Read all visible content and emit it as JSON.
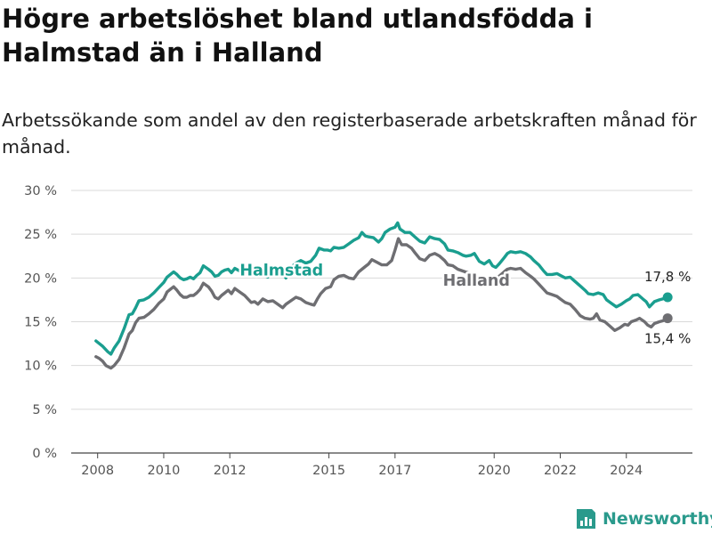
{
  "title": "Högre arbetslöshet bland utlandsfödda i Halmstad än i Halland",
  "subtitle": "Arbetssökande som andel av den registerbaserade arbetskraften månad för månad.",
  "brand": "Newsworthy",
  "colors": {
    "halmstad": "#1a9e8f",
    "halland": "#6e6e72",
    "grid": "#d9d9d9",
    "axis": "#555555"
  },
  "chart_data": {
    "type": "line",
    "y_ticks": [
      "0 %",
      "5 %",
      "10 %",
      "15 %",
      "20 %",
      "25 %",
      "30 %"
    ],
    "y_tick_values": [
      0,
      5,
      10,
      15,
      20,
      25,
      30
    ],
    "ylim": [
      0,
      30
    ],
    "x_ticks": [
      "2008",
      "2010",
      "2012",
      "2015",
      "2017",
      "2020",
      "2022",
      "2024"
    ],
    "x_tick_values": [
      2008,
      2010,
      2012,
      2015,
      2017,
      2020,
      2022,
      2024
    ],
    "xlim": [
      2007.2,
      2026.0
    ],
    "grid": true,
    "series": [
      {
        "name": "Halmstad",
        "end_label": "17,8 %",
        "points": [
          [
            2007.95,
            12.8
          ],
          [
            2008.05,
            12.5
          ],
          [
            2008.15,
            12.2
          ],
          [
            2008.3,
            11.6
          ],
          [
            2008.4,
            11.3
          ],
          [
            2008.5,
            12.0
          ],
          [
            2008.65,
            12.8
          ],
          [
            2008.8,
            14.2
          ],
          [
            2008.95,
            15.8
          ],
          [
            2009.05,
            15.9
          ],
          [
            2009.15,
            16.6
          ],
          [
            2009.25,
            17.4
          ],
          [
            2009.4,
            17.5
          ],
          [
            2009.55,
            17.8
          ],
          [
            2009.7,
            18.3
          ],
          [
            2009.85,
            18.9
          ],
          [
            2010.0,
            19.5
          ],
          [
            2010.1,
            20.1
          ],
          [
            2010.2,
            20.4
          ],
          [
            2010.3,
            20.7
          ],
          [
            2010.4,
            20.4
          ],
          [
            2010.5,
            20.0
          ],
          [
            2010.6,
            19.8
          ],
          [
            2010.7,
            19.9
          ],
          [
            2010.8,
            20.1
          ],
          [
            2010.9,
            19.9
          ],
          [
            2011.0,
            20.3
          ],
          [
            2011.1,
            20.6
          ],
          [
            2011.2,
            21.4
          ],
          [
            2011.35,
            21.0
          ],
          [
            2011.45,
            20.7
          ],
          [
            2011.55,
            20.2
          ],
          [
            2011.65,
            20.3
          ],
          [
            2011.75,
            20.7
          ],
          [
            2011.85,
            20.9
          ],
          [
            2011.95,
            21.0
          ],
          [
            2012.05,
            20.6
          ],
          [
            2012.15,
            21.1
          ],
          [
            2012.3,
            20.8
          ],
          [
            2012.45,
            20.6
          ],
          [
            2012.55,
            20.5
          ],
          [
            2012.65,
            20.7
          ],
          [
            2012.75,
            20.5
          ],
          [
            2012.85,
            20.3
          ],
          [
            2013.0,
            20.4
          ],
          [
            2013.15,
            20.1
          ],
          [
            2013.3,
            20.6
          ],
          [
            2013.45,
            20.3
          ],
          [
            2013.6,
            20.5
          ],
          [
            2013.7,
            20.0
          ],
          [
            2013.85,
            21.2
          ],
          [
            2014.0,
            21.7
          ],
          [
            2014.15,
            22.0
          ],
          [
            2014.3,
            21.7
          ],
          [
            2014.45,
            21.9
          ],
          [
            2014.6,
            22.6
          ],
          [
            2014.7,
            23.4
          ],
          [
            2014.85,
            23.2
          ],
          [
            2014.95,
            23.2
          ],
          [
            2015.05,
            23.1
          ],
          [
            2015.15,
            23.5
          ],
          [
            2015.3,
            23.4
          ],
          [
            2015.45,
            23.5
          ],
          [
            2015.6,
            23.9
          ],
          [
            2015.75,
            24.3
          ],
          [
            2015.9,
            24.6
          ],
          [
            2016.0,
            25.2
          ],
          [
            2016.1,
            24.8
          ],
          [
            2016.2,
            24.7
          ],
          [
            2016.35,
            24.6
          ],
          [
            2016.5,
            24.1
          ],
          [
            2016.6,
            24.5
          ],
          [
            2016.7,
            25.2
          ],
          [
            2016.85,
            25.6
          ],
          [
            2017.0,
            25.8
          ],
          [
            2017.08,
            26.3
          ],
          [
            2017.15,
            25.6
          ],
          [
            2017.3,
            25.2
          ],
          [
            2017.45,
            25.2
          ],
          [
            2017.6,
            24.7
          ],
          [
            2017.75,
            24.2
          ],
          [
            2017.9,
            24.0
          ],
          [
            2018.05,
            24.7
          ],
          [
            2018.2,
            24.5
          ],
          [
            2018.35,
            24.4
          ],
          [
            2018.5,
            23.9
          ],
          [
            2018.6,
            23.2
          ],
          [
            2018.75,
            23.1
          ],
          [
            2018.9,
            22.9
          ],
          [
            2019.05,
            22.6
          ],
          [
            2019.15,
            22.5
          ],
          [
            2019.3,
            22.6
          ],
          [
            2019.4,
            22.8
          ],
          [
            2019.55,
            21.9
          ],
          [
            2019.7,
            21.6
          ],
          [
            2019.85,
            22.0
          ],
          [
            2019.95,
            21.4
          ],
          [
            2020.05,
            21.2
          ],
          [
            2020.15,
            21.6
          ],
          [
            2020.3,
            22.3
          ],
          [
            2020.4,
            22.8
          ],
          [
            2020.5,
            23.0
          ],
          [
            2020.65,
            22.9
          ],
          [
            2020.8,
            23.0
          ],
          [
            2020.95,
            22.8
          ],
          [
            2021.1,
            22.4
          ],
          [
            2021.2,
            22.0
          ],
          [
            2021.35,
            21.5
          ],
          [
            2021.5,
            20.8
          ],
          [
            2021.6,
            20.4
          ],
          [
            2021.75,
            20.4
          ],
          [
            2021.9,
            20.5
          ],
          [
            2022.0,
            20.3
          ],
          [
            2022.15,
            20.0
          ],
          [
            2022.3,
            20.1
          ],
          [
            2022.45,
            19.6
          ],
          [
            2022.6,
            19.1
          ],
          [
            2022.75,
            18.6
          ],
          [
            2022.85,
            18.2
          ],
          [
            2023.0,
            18.1
          ],
          [
            2023.15,
            18.3
          ],
          [
            2023.3,
            18.1
          ],
          [
            2023.4,
            17.5
          ],
          [
            2023.55,
            17.1
          ],
          [
            2023.7,
            16.7
          ],
          [
            2023.85,
            17.0
          ],
          [
            2024.0,
            17.4
          ],
          [
            2024.1,
            17.6
          ],
          [
            2024.2,
            18.0
          ],
          [
            2024.35,
            18.1
          ],
          [
            2024.5,
            17.6
          ],
          [
            2024.6,
            17.3
          ],
          [
            2024.7,
            16.7
          ],
          [
            2024.85,
            17.3
          ],
          [
            2025.0,
            17.5
          ],
          [
            2025.1,
            17.6
          ],
          [
            2025.25,
            17.8
          ]
        ]
      },
      {
        "name": "Halland",
        "end_label": "15,4 %",
        "points": [
          [
            2007.95,
            11.0
          ],
          [
            2008.05,
            10.8
          ],
          [
            2008.15,
            10.5
          ],
          [
            2008.25,
            10.0
          ],
          [
            2008.4,
            9.7
          ],
          [
            2008.5,
            10.0
          ],
          [
            2008.65,
            10.7
          ],
          [
            2008.8,
            12.0
          ],
          [
            2008.95,
            13.6
          ],
          [
            2009.05,
            14.0
          ],
          [
            2009.15,
            14.9
          ],
          [
            2009.25,
            15.4
          ],
          [
            2009.4,
            15.5
          ],
          [
            2009.55,
            15.9
          ],
          [
            2009.7,
            16.4
          ],
          [
            2009.85,
            17.1
          ],
          [
            2010.0,
            17.6
          ],
          [
            2010.1,
            18.4
          ],
          [
            2010.2,
            18.7
          ],
          [
            2010.3,
            19.0
          ],
          [
            2010.4,
            18.6
          ],
          [
            2010.5,
            18.1
          ],
          [
            2010.6,
            17.8
          ],
          [
            2010.7,
            17.8
          ],
          [
            2010.8,
            18.0
          ],
          [
            2010.9,
            18.0
          ],
          [
            2011.0,
            18.3
          ],
          [
            2011.1,
            18.7
          ],
          [
            2011.2,
            19.4
          ],
          [
            2011.35,
            19.0
          ],
          [
            2011.45,
            18.5
          ],
          [
            2011.55,
            17.8
          ],
          [
            2011.65,
            17.6
          ],
          [
            2011.75,
            18.0
          ],
          [
            2011.85,
            18.3
          ],
          [
            2011.95,
            18.6
          ],
          [
            2012.05,
            18.2
          ],
          [
            2012.15,
            18.8
          ],
          [
            2012.3,
            18.4
          ],
          [
            2012.45,
            18.0
          ],
          [
            2012.55,
            17.6
          ],
          [
            2012.65,
            17.2
          ],
          [
            2012.75,
            17.3
          ],
          [
            2012.85,
            17.0
          ],
          [
            2013.0,
            17.6
          ],
          [
            2013.15,
            17.3
          ],
          [
            2013.3,
            17.4
          ],
          [
            2013.45,
            17.0
          ],
          [
            2013.6,
            16.6
          ],
          [
            2013.7,
            17.0
          ],
          [
            2013.85,
            17.4
          ],
          [
            2014.0,
            17.8
          ],
          [
            2014.15,
            17.6
          ],
          [
            2014.3,
            17.2
          ],
          [
            2014.45,
            17.0
          ],
          [
            2014.55,
            16.9
          ],
          [
            2014.65,
            17.6
          ],
          [
            2014.75,
            18.2
          ],
          [
            2014.9,
            18.8
          ],
          [
            2015.05,
            19.0
          ],
          [
            2015.15,
            19.8
          ],
          [
            2015.3,
            20.2
          ],
          [
            2015.45,
            20.3
          ],
          [
            2015.6,
            20.0
          ],
          [
            2015.75,
            19.9
          ],
          [
            2015.9,
            20.7
          ],
          [
            2016.0,
            21.0
          ],
          [
            2016.1,
            21.3
          ],
          [
            2016.2,
            21.6
          ],
          [
            2016.3,
            22.1
          ],
          [
            2016.45,
            21.8
          ],
          [
            2016.6,
            21.5
          ],
          [
            2016.75,
            21.5
          ],
          [
            2016.9,
            22.0
          ],
          [
            2017.0,
            23.2
          ],
          [
            2017.1,
            24.5
          ],
          [
            2017.2,
            23.8
          ],
          [
            2017.35,
            23.8
          ],
          [
            2017.5,
            23.4
          ],
          [
            2017.6,
            22.9
          ],
          [
            2017.75,
            22.2
          ],
          [
            2017.9,
            22.0
          ],
          [
            2018.05,
            22.6
          ],
          [
            2018.2,
            22.8
          ],
          [
            2018.35,
            22.5
          ],
          [
            2018.5,
            22.0
          ],
          [
            2018.6,
            21.5
          ],
          [
            2018.75,
            21.4
          ],
          [
            2018.9,
            21.0
          ],
          [
            2019.05,
            20.8
          ],
          [
            2019.2,
            20.6
          ],
          [
            2019.35,
            20.4
          ],
          [
            2019.5,
            19.8
          ],
          [
            2019.65,
            19.6
          ],
          [
            2019.8,
            19.5
          ],
          [
            2019.95,
            19.4
          ],
          [
            2020.05,
            19.8
          ],
          [
            2020.15,
            20.2
          ],
          [
            2020.3,
            20.7
          ],
          [
            2020.4,
            21.0
          ],
          [
            2020.5,
            21.1
          ],
          [
            2020.65,
            21.0
          ],
          [
            2020.8,
            21.1
          ],
          [
            2020.95,
            20.6
          ],
          [
            2021.1,
            20.2
          ],
          [
            2021.2,
            19.9
          ],
          [
            2021.35,
            19.3
          ],
          [
            2021.5,
            18.7
          ],
          [
            2021.6,
            18.3
          ],
          [
            2021.75,
            18.1
          ],
          [
            2021.9,
            17.9
          ],
          [
            2022.0,
            17.6
          ],
          [
            2022.15,
            17.2
          ],
          [
            2022.3,
            17.0
          ],
          [
            2022.45,
            16.4
          ],
          [
            2022.6,
            15.7
          ],
          [
            2022.75,
            15.4
          ],
          [
            2022.9,
            15.3
          ],
          [
            2023.0,
            15.4
          ],
          [
            2023.1,
            15.9
          ],
          [
            2023.2,
            15.2
          ],
          [
            2023.35,
            15.0
          ],
          [
            2023.5,
            14.5
          ],
          [
            2023.65,
            14.0
          ],
          [
            2023.8,
            14.3
          ],
          [
            2023.95,
            14.7
          ],
          [
            2024.05,
            14.6
          ],
          [
            2024.15,
            15.0
          ],
          [
            2024.3,
            15.2
          ],
          [
            2024.4,
            15.4
          ],
          [
            2024.55,
            15.0
          ],
          [
            2024.65,
            14.6
          ],
          [
            2024.75,
            14.4
          ],
          [
            2024.85,
            14.8
          ],
          [
            2025.0,
            15.0
          ],
          [
            2025.1,
            15.1
          ],
          [
            2025.25,
            15.4
          ]
        ]
      }
    ]
  }
}
